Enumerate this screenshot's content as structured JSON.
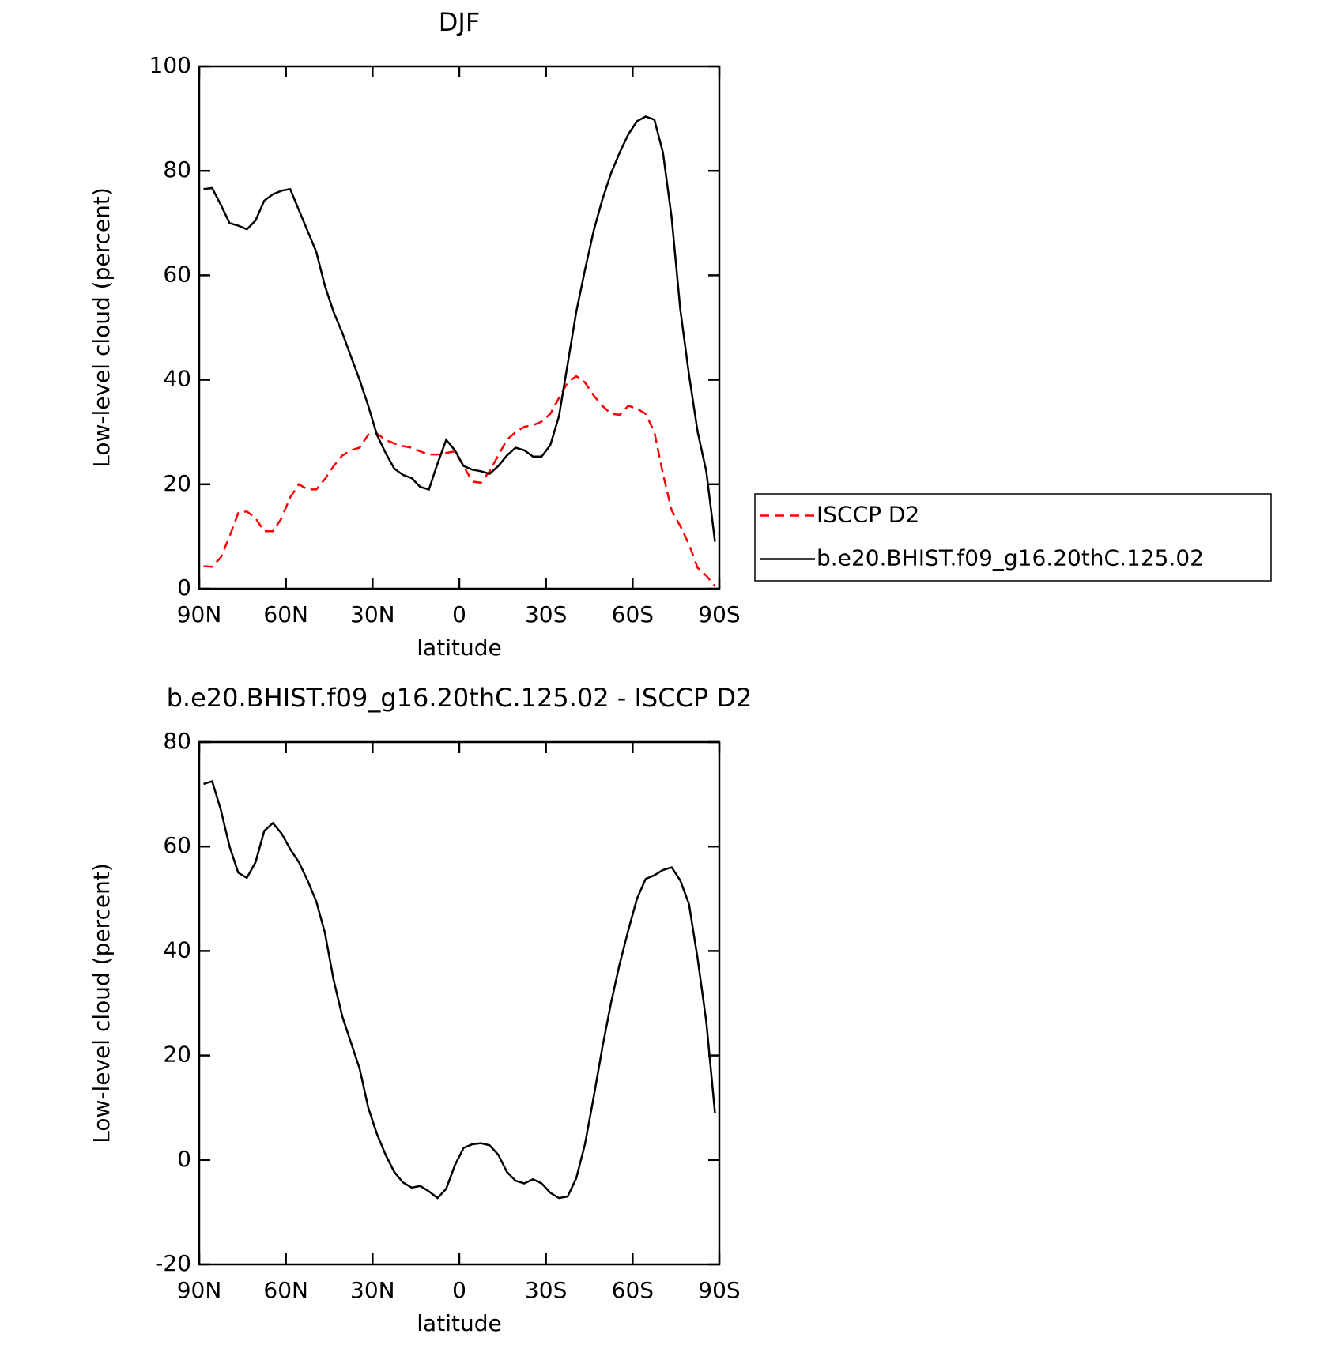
{
  "chart_data": [
    {
      "type": "line",
      "title": "DJF",
      "xlabel": "latitude",
      "ylabel": "Low-level cloud (percent)",
      "x": [
        88.5,
        85.5,
        82.5,
        79.5,
        76.5,
        73.5,
        70.5,
        67.5,
        64.5,
        61.5,
        58.5,
        55.5,
        52.5,
        49.5,
        46.5,
        43.5,
        40.5,
        37.5,
        34.5,
        31.5,
        28.5,
        25.5,
        22.5,
        19.5,
        16.5,
        13.5,
        10.5,
        7.5,
        4.5,
        1.5,
        -1.5,
        -4.5,
        -7.5,
        -10.5,
        -13.5,
        -16.5,
        -19.5,
        -22.5,
        -25.5,
        -28.5,
        -31.5,
        -34.5,
        -37.5,
        -40.5,
        -43.5,
        -46.5,
        -49.5,
        -52.5,
        -55.5,
        -58.5,
        -61.5,
        -64.5,
        -67.5,
        -70.5,
        -73.5,
        -76.5,
        -79.5,
        -82.5,
        -85.5,
        -88.5
      ],
      "series": [
        {
          "name": "ISCCP D2",
          "color": "#ff0000",
          "dashed": true,
          "values": [
            4.3,
            4.2,
            6,
            10,
            14.5,
            14.8,
            13.5,
            11,
            11,
            13.5,
            17.5,
            20,
            19,
            19,
            21,
            23.5,
            25.5,
            26.5,
            27,
            29.5,
            29.7,
            28.5,
            27.8,
            27.3,
            27,
            26.3,
            25.7,
            25.7,
            26,
            26.3,
            23.5,
            20.5,
            20.3,
            22.5,
            25.5,
            28.5,
            30,
            31,
            31.3,
            32,
            33.5,
            36.5,
            39.5,
            40.7,
            39.5,
            37,
            35,
            33.5,
            33.3,
            35,
            34.5,
            33.5,
            30,
            22,
            15,
            12,
            8.5,
            4,
            2.5,
            0.5
          ]
        },
        {
          "name": "b.e20.BHIST.f09_g16.20thC.125.02",
          "color": "#000000",
          "dashed": false,
          "values": [
            76.5,
            76.7,
            73.5,
            70,
            69.5,
            68.8,
            70.5,
            74.3,
            75.5,
            76.2,
            76.5,
            72.5,
            68.5,
            64.5,
            58,
            53,
            49,
            44.5,
            40,
            35,
            29.5,
            26,
            23,
            21.8,
            21.2,
            19.5,
            19,
            24,
            28.5,
            26.5,
            23.5,
            22.8,
            22.5,
            22,
            23.5,
            25.5,
            27,
            26.5,
            25.3,
            25.3,
            27.5,
            33,
            43,
            53,
            61,
            68.5,
            74.5,
            79.5,
            83.5,
            87,
            89.5,
            90.4,
            89.8,
            83.5,
            71,
            53.5,
            41,
            30,
            22.5,
            9
          ]
        }
      ],
      "xlim": [
        90,
        -90
      ],
      "xticks": [
        {
          "value": 90,
          "label": "90N"
        },
        {
          "value": 60,
          "label": "60N"
        },
        {
          "value": 30,
          "label": "30N"
        },
        0,
        {
          "value": -30,
          "label": "30S"
        },
        {
          "value": -60,
          "label": "60S"
        },
        {
          "value": -90,
          "label": "90S"
        }
      ],
      "ylim": [
        0,
        100
      ],
      "yticks": [
        0,
        20,
        40,
        60,
        80,
        100
      ],
      "legend": "right",
      "grid": false
    },
    {
      "type": "line",
      "title": "b.e20.BHIST.f09_g16.20thC.125.02 - ISCCP D2",
      "xlabel": "latitude",
      "ylabel": "Low-level cloud (percent)",
      "x": [
        88.5,
        85.5,
        82.5,
        79.5,
        76.5,
        73.5,
        70.5,
        67.5,
        64.5,
        61.5,
        58.5,
        55.5,
        52.5,
        49.5,
        46.5,
        43.5,
        40.5,
        37.5,
        34.5,
        31.5,
        28.5,
        25.5,
        22.5,
        19.5,
        16.5,
        13.5,
        10.5,
        7.5,
        4.5,
        1.5,
        -1.5,
        -4.5,
        -7.5,
        -10.5,
        -13.5,
        -16.5,
        -19.5,
        -22.5,
        -25.5,
        -28.5,
        -31.5,
        -34.5,
        -37.5,
        -40.5,
        -43.5,
        -46.5,
        -49.5,
        -52.5,
        -55.5,
        -58.5,
        -61.5,
        -64.5,
        -67.5,
        -70.5,
        -73.5,
        -76.5,
        -79.5,
        -82.5,
        -85.5,
        -88.5
      ],
      "series": [
        {
          "color": "#000000",
          "dashed": false,
          "values": [
            72,
            72.5,
            67,
            60,
            55,
            54,
            57,
            63,
            64.5,
            62.5,
            59.5,
            57,
            53.5,
            49.5,
            43.5,
            34.5,
            27.5,
            22.5,
            17.5,
            10,
            5,
            1,
            -2.3,
            -4.3,
            -5.3,
            -5,
            -6,
            -7.3,
            -5.5,
            -1,
            2.3,
            3,
            3.2,
            2.8,
            1,
            -2.3,
            -4,
            -4.5,
            -3.7,
            -4.5,
            -6.3,
            -7.3,
            -7,
            -3.5,
            3,
            12,
            21.5,
            30,
            37.5,
            44,
            50,
            53.8,
            54.5,
            55.5,
            56,
            53.5,
            49,
            38.5,
            26.5,
            9
          ]
        }
      ],
      "xlim": [
        90,
        -90
      ],
      "xticks": [
        {
          "value": 90,
          "label": "90N"
        },
        {
          "value": 60,
          "label": "60N"
        },
        {
          "value": 30,
          "label": "30N"
        },
        0,
        {
          "value": -30,
          "label": "30S"
        },
        {
          "value": -60,
          "label": "60S"
        },
        {
          "value": -90,
          "label": "90S"
        }
      ],
      "ylim": [
        -20,
        80
      ],
      "yticks": [
        -20,
        0,
        20,
        40,
        60,
        80
      ],
      "grid": false
    }
  ]
}
